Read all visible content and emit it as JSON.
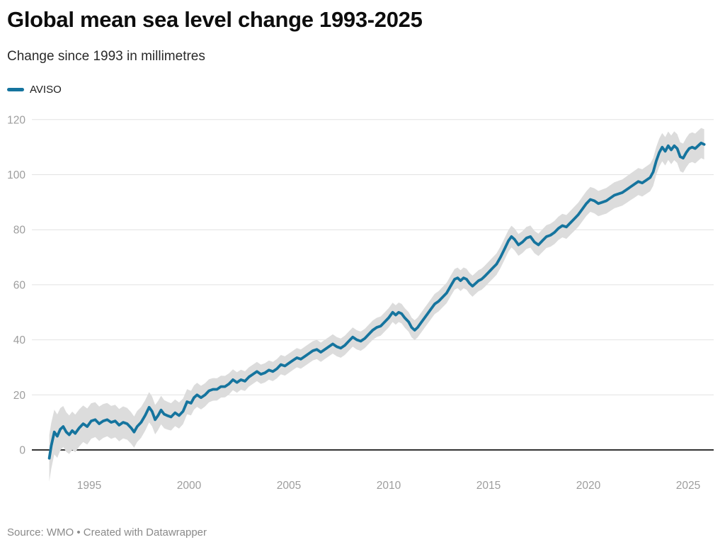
{
  "header": {
    "title": "Global mean sea level change 1993-2025",
    "subtitle": "Change since 1993 in millimetres"
  },
  "legend": {
    "series_label": "AVISO"
  },
  "footer": {
    "source": "Source: WMO • Created with Datawrapper"
  },
  "colors": {
    "line": "#15749e",
    "band": "#dcdcdc",
    "grid": "#e2e2e2",
    "zero_line": "#333333",
    "tick_label": "#9d9d9d",
    "title": "#0d0d0d"
  },
  "chart_data": {
    "type": "line",
    "title": "Global mean sea level change 1993-2025",
    "subtitle": "Change since 1993 in millimetres",
    "xlabel": "",
    "ylabel": "Change since 1993 in millimetres",
    "unit": "mm",
    "legend_position": "top-left",
    "grid": "horizontal-only",
    "x_ticks": [
      1995,
      2000,
      2005,
      2010,
      2015,
      2020,
      2025
    ],
    "y_ticks": [
      0,
      20,
      40,
      60,
      80,
      100,
      120
    ],
    "xlim": [
      1992.1,
      2026.3
    ],
    "ylim": [
      -12,
      126
    ],
    "band": {
      "label": "uncertainty envelope",
      "halfwidth_by_year": [
        [
          1993.0,
          8.5
        ],
        [
          1994.0,
          7.0
        ],
        [
          1996.0,
          6.0
        ],
        [
          1998.0,
          5.5
        ],
        [
          2000.0,
          4.5
        ],
        [
          2003.0,
          3.5
        ],
        [
          2010.0,
          3.5
        ],
        [
          2014.0,
          3.8
        ],
        [
          2017.0,
          4.0
        ],
        [
          2020.0,
          4.5
        ],
        [
          2023.0,
          5.0
        ],
        [
          2025.8,
          5.5
        ]
      ]
    },
    "series": [
      {
        "name": "AVISO",
        "points": [
          [
            1993.0,
            -3.0
          ],
          [
            1993.1,
            1.5
          ],
          [
            1993.25,
            6.5
          ],
          [
            1993.4,
            5.0
          ],
          [
            1993.55,
            7.5
          ],
          [
            1993.7,
            8.5
          ],
          [
            1993.85,
            6.5
          ],
          [
            1994.0,
            5.5
          ],
          [
            1994.15,
            7.0
          ],
          [
            1994.3,
            6.0
          ],
          [
            1994.5,
            8.0
          ],
          [
            1994.7,
            9.5
          ],
          [
            1994.9,
            8.5
          ],
          [
            1995.1,
            10.5
          ],
          [
            1995.3,
            11.0
          ],
          [
            1995.5,
            9.5
          ],
          [
            1995.7,
            10.5
          ],
          [
            1995.9,
            11.0
          ],
          [
            1996.1,
            10.0
          ],
          [
            1996.3,
            10.5
          ],
          [
            1996.5,
            9.0
          ],
          [
            1996.7,
            10.0
          ],
          [
            1996.9,
            9.5
          ],
          [
            1997.1,
            8.0
          ],
          [
            1997.25,
            6.5
          ],
          [
            1997.4,
            8.5
          ],
          [
            1997.6,
            10.0
          ],
          [
            1997.8,
            12.5
          ],
          [
            1998.0,
            15.5
          ],
          [
            1998.15,
            14.0
          ],
          [
            1998.3,
            11.0
          ],
          [
            1998.45,
            12.5
          ],
          [
            1998.6,
            14.5
          ],
          [
            1998.75,
            13.0
          ],
          [
            1998.9,
            12.5
          ],
          [
            1999.1,
            12.0
          ],
          [
            1999.3,
            13.5
          ],
          [
            1999.5,
            12.5
          ],
          [
            1999.7,
            14.0
          ],
          [
            1999.9,
            17.5
          ],
          [
            2000.1,
            17.0
          ],
          [
            2000.25,
            19.0
          ],
          [
            2000.4,
            20.0
          ],
          [
            2000.6,
            19.0
          ],
          [
            2000.8,
            20.0
          ],
          [
            2001.0,
            21.5
          ],
          [
            2001.2,
            22.0
          ],
          [
            2001.4,
            22.0
          ],
          [
            2001.6,
            23.0
          ],
          [
            2001.8,
            23.0
          ],
          [
            2002.0,
            24.0
          ],
          [
            2002.2,
            25.5
          ],
          [
            2002.4,
            24.5
          ],
          [
            2002.6,
            25.5
          ],
          [
            2002.8,
            25.0
          ],
          [
            2003.0,
            26.5
          ],
          [
            2003.2,
            27.5
          ],
          [
            2003.4,
            28.5
          ],
          [
            2003.6,
            27.5
          ],
          [
            2003.8,
            28.0
          ],
          [
            2004.0,
            29.0
          ],
          [
            2004.2,
            28.5
          ],
          [
            2004.4,
            29.5
          ],
          [
            2004.6,
            31.0
          ],
          [
            2004.8,
            30.5
          ],
          [
            2005.0,
            31.5
          ],
          [
            2005.2,
            32.5
          ],
          [
            2005.4,
            33.5
          ],
          [
            2005.6,
            33.0
          ],
          [
            2005.8,
            34.0
          ],
          [
            2006.0,
            35.0
          ],
          [
            2006.2,
            36.0
          ],
          [
            2006.4,
            36.5
          ],
          [
            2006.6,
            35.5
          ],
          [
            2006.8,
            36.5
          ],
          [
            2007.0,
            37.5
          ],
          [
            2007.2,
            38.5
          ],
          [
            2007.4,
            37.5
          ],
          [
            2007.6,
            37.0
          ],
          [
            2007.8,
            38.0
          ],
          [
            2008.0,
            39.5
          ],
          [
            2008.2,
            41.0
          ],
          [
            2008.4,
            40.0
          ],
          [
            2008.6,
            39.5
          ],
          [
            2008.8,
            40.5
          ],
          [
            2009.0,
            42.0
          ],
          [
            2009.2,
            43.5
          ],
          [
            2009.4,
            44.5
          ],
          [
            2009.6,
            45.0
          ],
          [
            2009.8,
            46.5
          ],
          [
            2010.0,
            48.0
          ],
          [
            2010.2,
            50.0
          ],
          [
            2010.35,
            49.0
          ],
          [
            2010.5,
            50.0
          ],
          [
            2010.65,
            49.5
          ],
          [
            2010.8,
            48.0
          ],
          [
            2011.0,
            46.5
          ],
          [
            2011.15,
            44.5
          ],
          [
            2011.3,
            43.5
          ],
          [
            2011.45,
            44.5
          ],
          [
            2011.6,
            46.0
          ],
          [
            2011.75,
            47.5
          ],
          [
            2011.9,
            49.0
          ],
          [
            2012.1,
            51.0
          ],
          [
            2012.3,
            53.0
          ],
          [
            2012.5,
            54.0
          ],
          [
            2012.7,
            55.5
          ],
          [
            2012.9,
            57.0
          ],
          [
            2013.1,
            59.5
          ],
          [
            2013.3,
            62.0
          ],
          [
            2013.45,
            62.5
          ],
          [
            2013.6,
            61.5
          ],
          [
            2013.75,
            62.5
          ],
          [
            2013.9,
            62.0
          ],
          [
            2014.05,
            60.5
          ],
          [
            2014.2,
            59.5
          ],
          [
            2014.35,
            60.5
          ],
          [
            2014.5,
            61.5
          ],
          [
            2014.65,
            62.0
          ],
          [
            2014.8,
            63.0
          ],
          [
            2015.0,
            64.5
          ],
          [
            2015.2,
            66.0
          ],
          [
            2015.4,
            67.5
          ],
          [
            2015.6,
            70.0
          ],
          [
            2015.8,
            73.0
          ],
          [
            2016.0,
            76.0
          ],
          [
            2016.15,
            77.5
          ],
          [
            2016.3,
            76.5
          ],
          [
            2016.5,
            74.5
          ],
          [
            2016.7,
            75.5
          ],
          [
            2016.9,
            77.0
          ],
          [
            2017.1,
            77.5
          ],
          [
            2017.3,
            75.5
          ],
          [
            2017.5,
            74.5
          ],
          [
            2017.7,
            76.0
          ],
          [
            2017.9,
            77.5
          ],
          [
            2018.1,
            78.0
          ],
          [
            2018.3,
            79.0
          ],
          [
            2018.5,
            80.5
          ],
          [
            2018.7,
            81.5
          ],
          [
            2018.9,
            81.0
          ],
          [
            2019.1,
            82.5
          ],
          [
            2019.3,
            84.0
          ],
          [
            2019.5,
            85.5
          ],
          [
            2019.7,
            87.5
          ],
          [
            2019.9,
            89.5
          ],
          [
            2020.1,
            91.0
          ],
          [
            2020.3,
            90.5
          ],
          [
            2020.5,
            89.5
          ],
          [
            2020.7,
            90.0
          ],
          [
            2020.9,
            90.5
          ],
          [
            2021.1,
            91.5
          ],
          [
            2021.3,
            92.5
          ],
          [
            2021.5,
            93.0
          ],
          [
            2021.7,
            93.5
          ],
          [
            2021.9,
            94.5
          ],
          [
            2022.1,
            95.5
          ],
          [
            2022.3,
            96.5
          ],
          [
            2022.5,
            97.5
          ],
          [
            2022.7,
            97.0
          ],
          [
            2022.9,
            98.0
          ],
          [
            2023.1,
            99.0
          ],
          [
            2023.25,
            101.0
          ],
          [
            2023.4,
            105.0
          ],
          [
            2023.55,
            108.0
          ],
          [
            2023.7,
            110.0
          ],
          [
            2023.85,
            108.5
          ],
          [
            2024.0,
            110.5
          ],
          [
            2024.15,
            109.0
          ],
          [
            2024.3,
            110.5
          ],
          [
            2024.45,
            109.5
          ],
          [
            2024.6,
            106.5
          ],
          [
            2024.75,
            106.0
          ],
          [
            2024.9,
            108.0
          ],
          [
            2025.05,
            109.5
          ],
          [
            2025.2,
            110.0
          ],
          [
            2025.35,
            109.5
          ],
          [
            2025.5,
            110.5
          ],
          [
            2025.65,
            111.5
          ],
          [
            2025.8,
            111.0
          ]
        ]
      }
    ]
  }
}
